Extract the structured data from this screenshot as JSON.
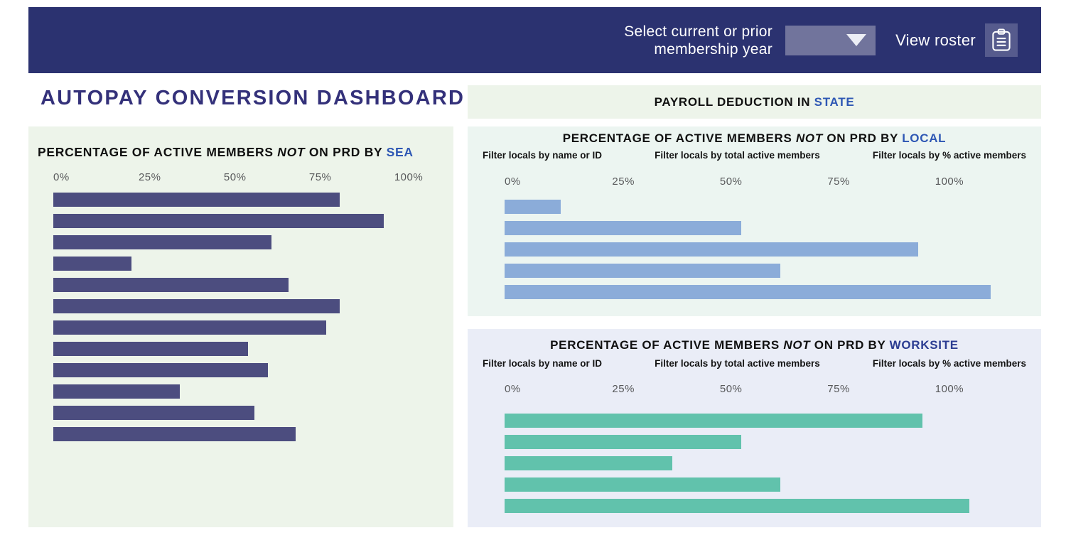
{
  "header": {
    "select_label_line1": "Select current or prior",
    "select_label_line2": "membership year",
    "year_dropdown_value": "",
    "view_roster_label": "View roster",
    "icons": {
      "dropdown_arrow": "triangle-down",
      "view_roster": "clipboard"
    }
  },
  "page_title": "AUTOPAY CONVERSION DASHBOARD",
  "payroll_strip": {
    "title_prefix": "PAYROLL DEDUCTION IN ",
    "title_accent": "STATE"
  },
  "colors": {
    "header_bg": "#2b3270",
    "page_title": "#34317a",
    "accent_blue": "#2e57b4",
    "worksite_accent": "#2c3d92",
    "sea_panel_bg": "#edf4ea",
    "state_strip_bg": "#edf4ea",
    "local_panel_bg": "#ecf5f1",
    "worksite_panel_bg": "#eaedf7",
    "sea_bar": "#4c4d7f",
    "local_bar": "#8bacd9",
    "worksite_bar": "#61c2ac",
    "dropdown_bg": "#71749c",
    "clipboard_btn_bg": "#565b8d"
  },
  "chart_data": [
    {
      "id": "sea",
      "type": "bar",
      "orientation": "horizontal",
      "title_prefix": "PERCENTAGE OF ACTIVE MEMBERS ",
      "title_italic": "NOT",
      "title_mid": " ON PRD BY ",
      "title_accent": "SEA",
      "tick_labels": [
        "0%",
        "25%",
        "50%",
        "75%",
        "100%"
      ],
      "tick_values": [
        0,
        25,
        50,
        75,
        100
      ],
      "xlim": [
        0,
        100
      ],
      "axis_span": 114,
      "grid": false,
      "legend": false,
      "categories": [],
      "values": [
        84,
        97,
        64,
        23,
        69,
        84,
        80,
        57,
        63,
        37,
        59,
        71
      ],
      "bar_color": "#4c4d7f"
    },
    {
      "id": "local",
      "type": "bar",
      "orientation": "horizontal",
      "title_prefix": "PERCENTAGE OF ACTIVE MEMBERS ",
      "title_italic": "NOT",
      "title_mid": " ON PRD BY ",
      "title_accent": "LOCAL",
      "filters": [
        "Filter locals by name or ID",
        "Filter locals by total active members",
        "Filter locals by % active members"
      ],
      "tick_labels": [
        "0%",
        "25%",
        "50%",
        "75%",
        "100%"
      ],
      "tick_values": [
        0,
        25,
        50,
        75,
        100
      ],
      "xlim": [
        0,
        100
      ],
      "axis_span": 122,
      "grid": false,
      "legend": false,
      "categories": [],
      "values": [
        13,
        55,
        96,
        64,
        113
      ],
      "bar_color": "#8bacd9"
    },
    {
      "id": "worksite",
      "type": "bar",
      "orientation": "horizontal",
      "title_prefix": "PERCENTAGE OF ACTIVE MEMBERS ",
      "title_italic": "NOT",
      "title_mid": " ON PRD BY ",
      "title_accent": "WORKSITE",
      "filters": [
        "Filter locals by name or ID",
        "Filter locals by total active members",
        "Filter locals by % active members"
      ],
      "tick_labels": [
        "0%",
        "25%",
        "50%",
        "75%",
        "100%"
      ],
      "tick_values": [
        0,
        25,
        50,
        75,
        100
      ],
      "xlim": [
        0,
        100
      ],
      "axis_span": 122,
      "grid": false,
      "legend": false,
      "categories": [],
      "values": [
        97,
        55,
        39,
        64,
        108
      ],
      "bar_color": "#61c2ac"
    }
  ]
}
